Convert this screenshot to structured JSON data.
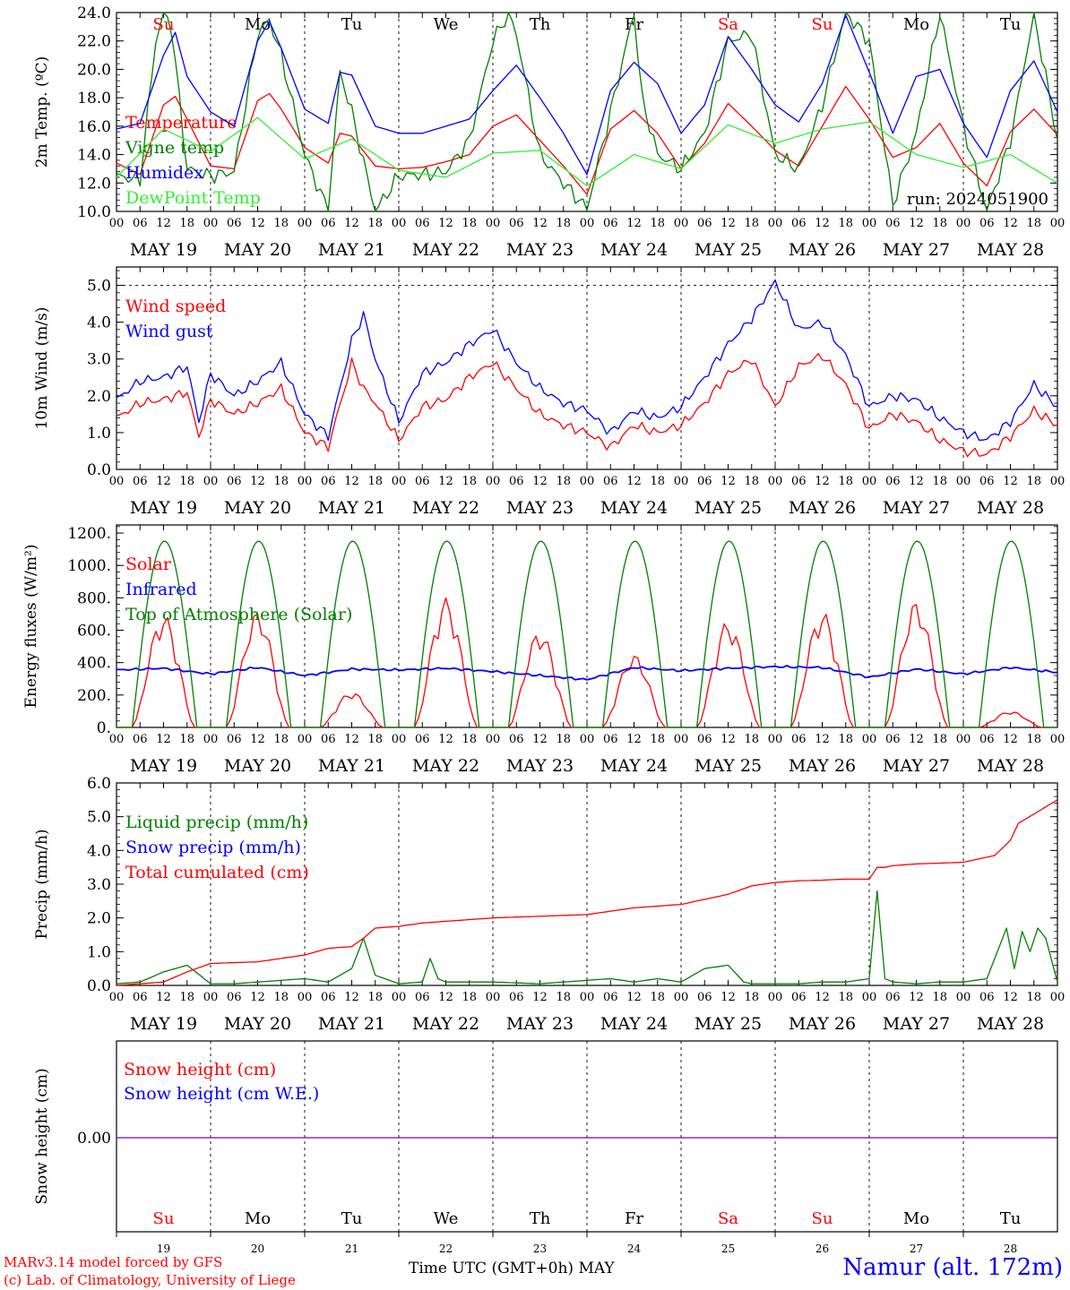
{
  "chart_data": {
    "type": "line",
    "run_label": "run: 2024051900",
    "days": [
      "MAY 19",
      "MAY 20",
      "MAY 21",
      "MAY 22",
      "MAY 23",
      "MAY 24",
      "MAY 25",
      "MAY 26",
      "MAY 27",
      "MAY 28"
    ],
    "weekdays": [
      {
        "label": "Su",
        "color": "#ff0000"
      },
      {
        "label": "Mo",
        "color": "#000000"
      },
      {
        "label": "Tu",
        "color": "#000000"
      },
      {
        "label": "We",
        "color": "#000000"
      },
      {
        "label": "Th",
        "color": "#000000"
      },
      {
        "label": "Fr",
        "color": "#000000"
      },
      {
        "label": "Sa",
        "color": "#ff0000"
      },
      {
        "label": "Su",
        "color": "#ff0000"
      },
      {
        "label": "Mo",
        "color": "#000000"
      },
      {
        "label": "Tu",
        "color": "#000000"
      }
    ],
    "day_numbers": [
      "19",
      "20",
      "21",
      "22",
      "23",
      "24",
      "25",
      "26",
      "27",
      "28"
    ],
    "hour_ticks": [
      "00",
      "06",
      "12",
      "18"
    ],
    "x_end_label": "00",
    "panels": [
      {
        "id": "temp",
        "ylabel": "2m Temp. (ºC)",
        "ylim": [
          10,
          24
        ],
        "ytick_labels": [
          "10.0",
          "12.0",
          "14.0",
          "16.0",
          "18.0",
          "20.0",
          "22.0",
          "24.0"
        ],
        "series": [
          {
            "name": "Temperature",
            "color": "#ff0000",
            "x": [
              0,
              6,
              12,
              15,
              18,
              24,
              30,
              36,
              39,
              42,
              48,
              54,
              57,
              60,
              66,
              72,
              78,
              84,
              90,
              96,
              102,
              108,
              114,
              120,
              126,
              132,
              138,
              144,
              150,
              156,
              162,
              168,
              174,
              180,
              186,
              192,
              198,
              204,
              210,
              216,
              222,
              228,
              234,
              240
            ],
            "y": [
              13.4,
              12.6,
              17.5,
              18.1,
              16.5,
              13.2,
              13.0,
              17.8,
              18.3,
              17.2,
              14.5,
              13.4,
              15.5,
              15.3,
              13.2,
              13.0,
              13.1,
              13.5,
              14.0,
              16.0,
              16.8,
              15.0,
              13.2,
              11.2,
              15.8,
              17.1,
              15.5,
              13.0,
              14.8,
              17.6,
              16.0,
              14.3,
              13.2,
              16.0,
              18.8,
              16.5,
              13.8,
              14.5,
              16.2,
              13.4,
              11.8,
              15.6,
              17.2,
              15.4
            ]
          },
          {
            "name": "Vigne temp",
            "color": "#007f00",
            "x": [
              0,
              6,
              10,
              12,
              14,
              18,
              24,
              30,
              36,
              39,
              42,
              48,
              54,
              57,
              60,
              66,
              72,
              78,
              84,
              90,
              96,
              100,
              102,
              108,
              114,
              120,
              126,
              132,
              134,
              138,
              144,
              150,
              156,
              162,
              168,
              174,
              180,
              186,
              192,
              198,
              204,
              210,
              216,
              222,
              228,
              234,
              240
            ],
            "y": [
              12.5,
              12.2,
              22.0,
              24.0,
              23.0,
              13.0,
              12.5,
              12.8,
              22.5,
              23.5,
              21.0,
              14.0,
              10.0,
              19.8,
              17.0,
              10.0,
              12.5,
              12.6,
              12.8,
              15.0,
              22.0,
              24.0,
              22.5,
              14.0,
              12.0,
              10.2,
              17.0,
              24.0,
              18.0,
              14.0,
              13.0,
              15.5,
              22.0,
              22.5,
              14.0,
              13.0,
              17.5,
              24.0,
              22.0,
              10.5,
              15.5,
              24.0,
              16.0,
              10.0,
              15.0,
              24.0,
              15.0
            ]
          },
          {
            "name": "Humidex",
            "color": "#0000ff",
            "x": [
              0,
              6,
              12,
              15,
              18,
              24,
              30,
              36,
              39,
              42,
              48,
              54,
              57,
              60,
              66,
              72,
              78,
              84,
              90,
              96,
              102,
              108,
              114,
              120,
              126,
              132,
              138,
              144,
              150,
              156,
              162,
              168,
              174,
              180,
              186,
              192,
              198,
              204,
              210,
              216,
              222,
              228,
              234,
              240
            ],
            "y": [
              15.8,
              16.2,
              21.0,
              22.6,
              19.5,
              17.0,
              16.0,
              22.0,
              23.4,
              21.5,
              17.2,
              16.2,
              19.8,
              19.6,
              16.0,
              15.5,
              15.5,
              16.0,
              16.5,
              18.5,
              20.3,
              18.0,
              15.5,
              12.6,
              18.5,
              20.5,
              19.0,
              15.5,
              17.5,
              22.3,
              20.0,
              17.5,
              16.3,
              19.0,
              23.8,
              19.8,
              15.5,
              19.5,
              20.0,
              16.2,
              13.8,
              18.5,
              20.6,
              17.0
            ]
          },
          {
            "name": "DewPoint Temp",
            "color": "#33ee33",
            "x": [
              0,
              12,
              24,
              36,
              48,
              60,
              72,
              84,
              96,
              108,
              120,
              132,
              144,
              156,
              168,
              180,
              192,
              204,
              216,
              228,
              240
            ],
            "y": [
              12.4,
              15.8,
              14.2,
              16.6,
              13.7,
              15.1,
              12.9,
              12.4,
              14.1,
              14.3,
              11.8,
              14.0,
              13.0,
              16.1,
              14.8,
              15.8,
              16.3,
              14.0,
              13.1,
              14.0,
              12.0
            ]
          }
        ]
      },
      {
        "id": "wind",
        "ylabel": "10m Wind (m/s)",
        "ylim": [
          0,
          5.5
        ],
        "ytick_labels": [
          "0.0",
          "1.0",
          "2.0",
          "3.0",
          "4.0",
          "5.0"
        ],
        "ref_line": 5.0,
        "series": [
          {
            "name": "Wind speed",
            "color": "#ff0000",
            "x": [
              0,
              6,
              12,
              18,
              21,
              24,
              30,
              36,
              42,
              48,
              54,
              60,
              63,
              66,
              72,
              78,
              84,
              90,
              96,
              102,
              108,
              114,
              120,
              126,
              132,
              138,
              144,
              150,
              156,
              162,
              168,
              174,
              180,
              186,
              192,
              198,
              204,
              210,
              216,
              222,
              228,
              234,
              240
            ],
            "y": [
              1.4,
              1.8,
              1.9,
              2.1,
              0.9,
              1.9,
              1.5,
              1.8,
              2.2,
              1.0,
              0.6,
              2.9,
              2.2,
              1.8,
              0.8,
              1.7,
              1.9,
              2.5,
              2.9,
              2.2,
              1.5,
              1.2,
              1.0,
              0.6,
              1.2,
              1.0,
              1.2,
              1.8,
              2.6,
              3.0,
              1.7,
              2.8,
              3.1,
              2.3,
              1.1,
              1.5,
              1.3,
              0.8,
              0.5,
              0.4,
              0.9,
              1.6,
              1.2
            ]
          },
          {
            "name": "Wind gust",
            "color": "#0000ff",
            "x": [
              0,
              6,
              12,
              18,
              21,
              24,
              30,
              36,
              42,
              48,
              54,
              60,
              63,
              66,
              72,
              78,
              84,
              90,
              96,
              102,
              108,
              114,
              120,
              126,
              132,
              138,
              144,
              150,
              156,
              162,
              168,
              174,
              180,
              186,
              192,
              198,
              204,
              210,
              216,
              222,
              228,
              234,
              240
            ],
            "y": [
              1.9,
              2.4,
              2.5,
              2.8,
              1.3,
              2.6,
              2.0,
              2.4,
              2.9,
              1.5,
              0.9,
              3.5,
              4.2,
              3.0,
              1.3,
              2.6,
              2.9,
              3.4,
              3.8,
              2.9,
              2.2,
              1.8,
              1.6,
              1.0,
              1.6,
              1.4,
              1.7,
              2.5,
              3.4,
              4.1,
              5.1,
              3.8,
              4.0,
              3.1,
              1.7,
              2.0,
              1.9,
              1.4,
              1.0,
              0.8,
              1.3,
              2.3,
              1.7
            ]
          }
        ]
      },
      {
        "id": "energy",
        "ylabel": "Energy fluxes (W/m²)",
        "ylim": [
          0,
          1250
        ],
        "ytick_labels": [
          "0.",
          "200.",
          "400.",
          "600.",
          "800.",
          "1000.",
          "1200."
        ],
        "series": [
          {
            "name": "Solar",
            "color": "#ff0000",
            "peaks": [
              700,
              720,
              220,
              800,
              600,
              450,
              660,
              720,
              780,
              100
            ]
          },
          {
            "name": "Infrared",
            "color": "#0000ff",
            "x": [
              0,
              12,
              24,
              36,
              48,
              60,
              72,
              84,
              96,
              108,
              120,
              132,
              144,
              156,
              168,
              180,
              192,
              204,
              216,
              228,
              240
            ],
            "y": [
              355,
              365,
              330,
              370,
              320,
              360,
              355,
              365,
              345,
              320,
              295,
              370,
              350,
              365,
              375,
              370,
              310,
              360,
              330,
              370,
              340
            ]
          },
          {
            "name": "Top of Atmosphere (Solar)",
            "color": "#007f00",
            "peak": 1150
          }
        ]
      },
      {
        "id": "precip",
        "ylabel": "Precip (mm/h)",
        "ylim": [
          0,
          6
        ],
        "ytick_labels": [
          "0.0",
          "1.0",
          "2.0",
          "3.0",
          "4.0",
          "5.0",
          "6.0"
        ],
        "series": [
          {
            "name": "Liquid precip (mm/h)",
            "color": "#007f00",
            "x": [
              0,
              6,
              12,
              18,
              24,
              30,
              36,
              48,
              54,
              60,
              63,
              66,
              72,
              78,
              80,
              82,
              84,
              96,
              108,
              120,
              126,
              132,
              144,
              138,
              150,
              156,
              160,
              162,
              168,
              174,
              180,
              186,
              192,
              194,
              196,
              198,
              204,
              210,
              216,
              222,
              227,
              229,
              231,
              233,
              235,
              237,
              240
            ],
            "y": [
              0.05,
              0.1,
              0.4,
              0.6,
              0.05,
              0.05,
              0.1,
              0.2,
              0.1,
              0.5,
              1.4,
              0.3,
              0.05,
              0.1,
              0.8,
              0.2,
              0.1,
              0.1,
              0.05,
              0.15,
              0.2,
              0.1,
              0.1,
              0.2,
              0.5,
              0.6,
              0.1,
              0.05,
              0.05,
              0.05,
              0.1,
              0.1,
              0.2,
              2.8,
              0.2,
              0.1,
              0.05,
              0.1,
              0.1,
              0.2,
              1.7,
              0.5,
              1.6,
              1.0,
              1.7,
              1.4,
              0.1
            ]
          },
          {
            "name": "Snow precip (mm/h)",
            "color": "#0000ff",
            "x": [
              0,
              240
            ],
            "y": [
              0,
              0
            ]
          },
          {
            "name": "Total cumulated (cm)",
            "color": "#ff0000",
            "x": [
              0,
              12,
              18,
              24,
              36,
              48,
              54,
              60,
              63,
              66,
              72,
              78,
              84,
              96,
              108,
              120,
              132,
              144,
              156,
              162,
              168,
              174,
              180,
              186,
              192,
              194,
              196,
              198,
              204,
              216,
              224,
              228,
              230,
              240
            ],
            "y": [
              0,
              0.1,
              0.4,
              0.65,
              0.7,
              0.9,
              1.1,
              1.15,
              1.4,
              1.7,
              1.75,
              1.85,
              1.9,
              2.0,
              2.05,
              2.1,
              2.3,
              2.4,
              2.7,
              2.95,
              3.05,
              3.1,
              3.12,
              3.15,
              3.15,
              3.5,
              3.5,
              3.55,
              3.6,
              3.65,
              3.85,
              4.3,
              4.8,
              5.5
            ]
          }
        ]
      },
      {
        "id": "snow",
        "ylabel": "Snow height (cm)",
        "ytick_labels": [
          "0.00"
        ],
        "series": [
          {
            "name": "Snow height (cm)",
            "color": "#ff0000",
            "x": [
              0,
              240
            ],
            "y": [
              0,
              0
            ]
          },
          {
            "name": "Snow height (cm W.E.)",
            "color": "#0000ff",
            "x": [
              0,
              240
            ],
            "y": [
              0,
              0
            ]
          }
        ]
      }
    ]
  },
  "footer": {
    "model_line": "MARv3.14 model forced by GFS",
    "credit_line": "(c) Lab. of Climatology, University of Liege",
    "xaxis_title": "Time UTC (GMT+0h) MAY",
    "location": "Namur (alt. 172m)"
  }
}
